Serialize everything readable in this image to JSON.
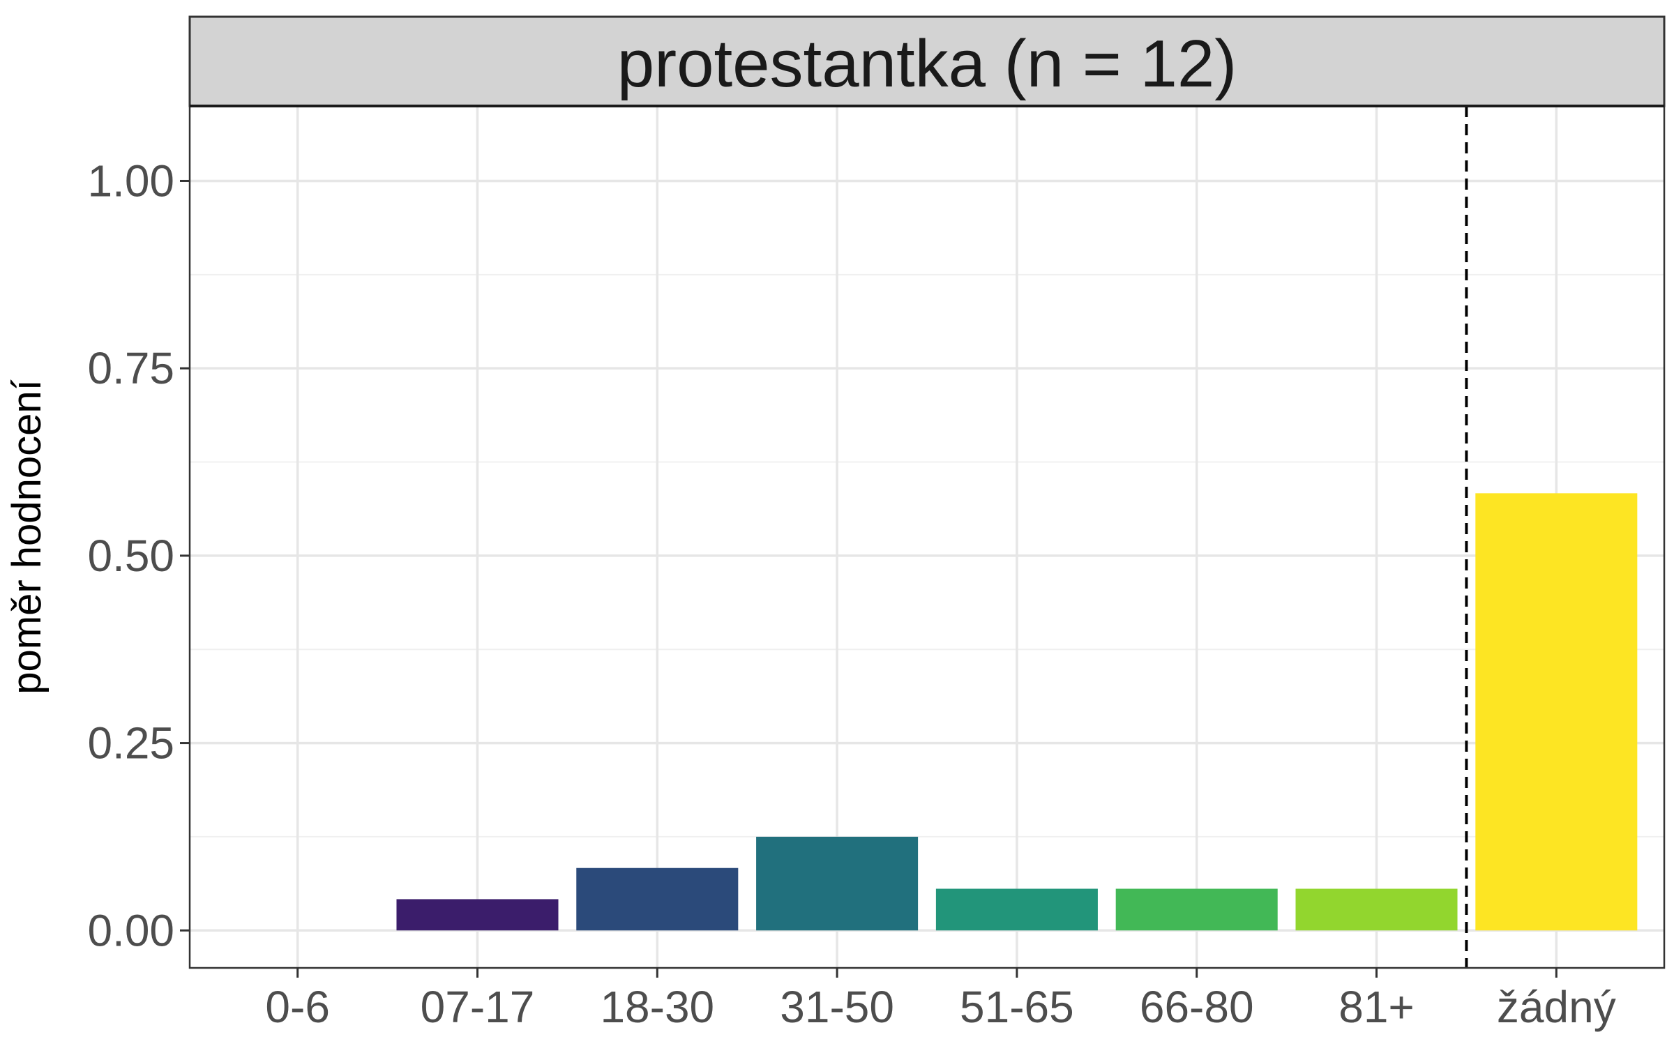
{
  "chart_data": {
    "type": "bar",
    "facet_title": "protestantka (n = 12)",
    "ylabel": "poměr hodnocení",
    "xlabel": "",
    "categories": [
      "0-6",
      "07-17",
      "18-30",
      "31-50",
      "51-65",
      "66-80",
      "81+",
      "žádný"
    ],
    "values": [
      0.0,
      0.0417,
      0.0833,
      0.125,
      0.0556,
      0.0556,
      0.0556,
      0.5833
    ],
    "colors": [
      "#440154",
      "#3b1d6b",
      "#2b4a7a",
      "#21707d",
      "#22957a",
      "#42b856",
      "#92d62e",
      "#fde523"
    ],
    "ylim": [
      -0.05,
      1.1
    ],
    "yticks": [
      0,
      0.25,
      0.5,
      0.75,
      1.0
    ],
    "ytick_labels": [
      "0.00",
      "0.25",
      "0.50",
      "0.75",
      "1.00"
    ],
    "minor_yticks": [
      0.125,
      0.375,
      0.625,
      0.875
    ],
    "dashed_vline_between": [
      "81+",
      "žádný"
    ],
    "grid": true
  }
}
